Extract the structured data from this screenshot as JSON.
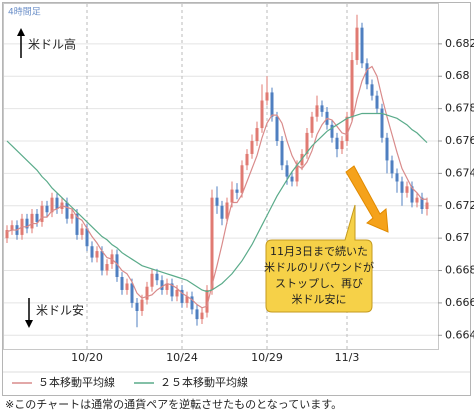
{
  "chart_data": {
    "type": "candlestick",
    "timeframe_label": "4時間足",
    "categories": [
      null,
      null,
      null,
      null,
      null,
      null,
      null,
      null,
      null,
      null,
      null,
      null,
      null,
      null,
      null,
      null,
      "10/20",
      null,
      null,
      null,
      null,
      null,
      null,
      null,
      null,
      null,
      null,
      null,
      null,
      null,
      null,
      null,
      null,
      null,
      null,
      "10/24",
      null,
      null,
      null,
      null,
      null,
      null,
      null,
      null,
      null,
      null,
      null,
      null,
      null,
      null,
      null,
      null,
      "10/29",
      null,
      null,
      null,
      null,
      null,
      null,
      null,
      null,
      null,
      null,
      null,
      null,
      null,
      null,
      null,
      "11/3",
      null,
      null,
      null,
      null,
      null,
      null,
      null,
      null,
      null,
      null,
      null,
      null,
      null,
      null,
      null,
      null
    ],
    "open": [
      0.67,
      0.6705,
      0.6708,
      0.6702,
      0.6712,
      0.6706,
      0.6715,
      0.671,
      0.672,
      0.6716,
      0.6725,
      0.6718,
      0.6722,
      0.6712,
      0.6715,
      0.6702,
      0.6706,
      0.6695,
      0.6688,
      0.6692,
      0.668,
      0.6684,
      0.669,
      0.6676,
      0.6668,
      0.6672,
      0.666,
      0.6655,
      0.6662,
      0.667,
      0.6678,
      0.6674,
      0.6668,
      0.6672,
      0.6664,
      0.6668,
      0.666,
      0.6664,
      0.6656,
      0.665,
      0.6654,
      0.6668,
      0.6725,
      0.672,
      0.6712,
      0.6722,
      0.673,
      0.6728,
      0.6745,
      0.6752,
      0.676,
      0.6768,
      0.6785,
      0.679,
      0.6775,
      0.676,
      0.6745,
      0.6738,
      0.6735,
      0.6745,
      0.6752,
      0.6765,
      0.6775,
      0.6782,
      0.6778,
      0.677,
      0.6762,
      0.6755,
      0.676,
      0.6775,
      0.681,
      0.683,
      0.6808,
      0.6795,
      0.6788,
      0.678,
      0.6762,
      0.6748,
      0.674,
      0.6735,
      0.6728,
      0.6732,
      0.6722,
      0.6725,
      0.6718
    ],
    "high": [
      0.6708,
      0.6711,
      0.6711,
      0.6715,
      0.6715,
      0.6718,
      0.6718,
      0.6723,
      0.6723,
      0.6728,
      0.6728,
      0.6725,
      0.6725,
      0.6718,
      0.6718,
      0.6709,
      0.6709,
      0.6698,
      0.6695,
      0.6695,
      0.6687,
      0.6693,
      0.6693,
      0.6679,
      0.6675,
      0.6675,
      0.6663,
      0.6665,
      0.6673,
      0.6681,
      0.6681,
      0.6677,
      0.6675,
      0.6675,
      0.6671,
      0.6671,
      0.6667,
      0.6667,
      0.6659,
      0.6657,
      0.6671,
      0.673,
      0.6732,
      0.6723,
      0.6725,
      0.6735,
      0.6734,
      0.6748,
      0.6755,
      0.6764,
      0.6772,
      0.6795,
      0.68,
      0.6793,
      0.6778,
      0.6763,
      0.6748,
      0.6741,
      0.6748,
      0.6755,
      0.6768,
      0.6778,
      0.6788,
      0.6785,
      0.6781,
      0.6773,
      0.6765,
      0.6763,
      0.6778,
      0.6815,
      0.6838,
      0.6833,
      0.6811,
      0.6798,
      0.6791,
      0.6783,
      0.6765,
      0.6751,
      0.6743,
      0.6738,
      0.6735,
      0.6735,
      0.6728,
      0.6728,
      0.6725
    ],
    "low": [
      0.6697,
      0.6702,
      0.6699,
      0.6699,
      0.6703,
      0.6703,
      0.6707,
      0.6707,
      0.6713,
      0.6713,
      0.6715,
      0.6715,
      0.6709,
      0.6709,
      0.6699,
      0.6699,
      0.6692,
      0.6685,
      0.6685,
      0.6677,
      0.6677,
      0.6681,
      0.6673,
      0.6665,
      0.6665,
      0.6657,
      0.6645,
      0.6652,
      0.6659,
      0.6667,
      0.6671,
      0.6665,
      0.6665,
      0.6661,
      0.6661,
      0.6657,
      0.6657,
      0.6653,
      0.6646,
      0.6647,
      0.6651,
      0.6665,
      0.6715,
      0.6708,
      0.6709,
      0.6719,
      0.6724,
      0.6725,
      0.6742,
      0.6749,
      0.6757,
      0.6765,
      0.6782,
      0.6772,
      0.6757,
      0.6742,
      0.6733,
      0.6732,
      0.6732,
      0.6742,
      0.6749,
      0.6762,
      0.6772,
      0.6775,
      0.6767,
      0.6759,
      0.675,
      0.6752,
      0.6757,
      0.6772,
      0.6807,
      0.6805,
      0.6792,
      0.6785,
      0.6777,
      0.6759,
      0.674,
      0.6737,
      0.6728,
      0.672,
      0.6725,
      0.6719,
      0.6719,
      0.6715,
      0.6714
    ],
    "close": [
      0.6705,
      0.6708,
      0.6702,
      0.6712,
      0.6706,
      0.6715,
      0.671,
      0.672,
      0.6716,
      0.6725,
      0.6718,
      0.6722,
      0.6712,
      0.6715,
      0.6702,
      0.6706,
      0.6695,
      0.6688,
      0.6692,
      0.668,
      0.6684,
      0.669,
      0.6676,
      0.6668,
      0.6672,
      0.666,
      0.6655,
      0.6662,
      0.667,
      0.6678,
      0.6674,
      0.6668,
      0.6672,
      0.6664,
      0.6668,
      0.666,
      0.6664,
      0.6656,
      0.665,
      0.6654,
      0.6668,
      0.6725,
      0.672,
      0.6712,
      0.6722,
      0.673,
      0.6728,
      0.6745,
      0.6752,
      0.676,
      0.6768,
      0.6785,
      0.679,
      0.6775,
      0.676,
      0.6745,
      0.6738,
      0.6735,
      0.6745,
      0.6752,
      0.6765,
      0.6775,
      0.6782,
      0.6778,
      0.677,
      0.6762,
      0.6755,
      0.676,
      0.6775,
      0.681,
      0.683,
      0.6808,
      0.6795,
      0.6788,
      0.678,
      0.6762,
      0.6748,
      0.674,
      0.6735,
      0.6728,
      0.6732,
      0.6722,
      0.6725,
      0.6718,
      0.6722
    ],
    "up_color": "#e07a72",
    "down_color": "#4f7fc0",
    "series": [
      {
        "name": "５本移動平均線",
        "color": "#d98b8b",
        "values": [
          0.6704,
          0.6705,
          0.6705,
          0.6707,
          0.6707,
          0.6709,
          0.6709,
          0.6713,
          0.6713,
          0.6717,
          0.6718,
          0.672,
          0.6719,
          0.6718,
          0.6713,
          0.6711,
          0.6706,
          0.6701,
          0.6697,
          0.6692,
          0.6688,
          0.6687,
          0.6684,
          0.668,
          0.6678,
          0.6673,
          0.6666,
          0.6663,
          0.6664,
          0.6665,
          0.6668,
          0.667,
          0.6672,
          0.6671,
          0.6669,
          0.6666,
          0.6664,
          0.6662,
          0.6659,
          0.6657,
          0.6658,
          0.6671,
          0.6683,
          0.6696,
          0.671,
          0.6722,
          0.6722,
          0.6727,
          0.6735,
          0.6743,
          0.6751,
          0.6762,
          0.6771,
          0.6776,
          0.6776,
          0.6771,
          0.676,
          0.6751,
          0.6745,
          0.6743,
          0.6747,
          0.6754,
          0.6764,
          0.677,
          0.6774,
          0.6773,
          0.6769,
          0.6765,
          0.6764,
          0.6772,
          0.6786,
          0.6797,
          0.6804,
          0.6806,
          0.68,
          0.6787,
          0.6775,
          0.6764,
          0.6753,
          0.6743,
          0.6737,
          0.6731,
          0.6728,
          0.6724,
          0.6724
        ]
      },
      {
        "name": "２５本移動平均線",
        "color": "#5aab8a",
        "values": [
          0.676,
          0.6757,
          0.6754,
          0.6751,
          0.6748,
          0.6745,
          0.6742,
          0.6738,
          0.6735,
          0.6731,
          0.6728,
          0.6725,
          0.6722,
          0.6719,
          0.6716,
          0.6713,
          0.671,
          0.6707,
          0.6704,
          0.6701,
          0.6699,
          0.6696,
          0.6694,
          0.6691,
          0.6689,
          0.6687,
          0.6685,
          0.6683,
          0.6682,
          0.6681,
          0.668,
          0.6679,
          0.6678,
          0.6677,
          0.6676,
          0.6675,
          0.6674,
          0.6672,
          0.667,
          0.6668,
          0.6667,
          0.6668,
          0.667,
          0.6672,
          0.6675,
          0.6678,
          0.6682,
          0.6686,
          0.6691,
          0.6696,
          0.6702,
          0.6708,
          0.6714,
          0.672,
          0.6726,
          0.6731,
          0.6736,
          0.6741,
          0.6745,
          0.6749,
          0.6753,
          0.6757,
          0.676,
          0.6763,
          0.6766,
          0.6768,
          0.677,
          0.6772,
          0.6774,
          0.6775,
          0.6776,
          0.6777,
          0.6777,
          0.6777,
          0.6777,
          0.6777,
          0.6776,
          0.6775,
          0.6774,
          0.6772,
          0.677,
          0.6767,
          0.6765,
          0.6762,
          0.6759
        ]
      }
    ],
    "ylim": [
      0.6634,
      0.6844
    ],
    "yticks": [
      0.664,
      0.666,
      0.668,
      0.67,
      0.672,
      0.674,
      0.676,
      0.678,
      0.68,
      0.682
    ],
    "annotations": {
      "top_label": "米ドル高",
      "bottom_label": "米ドル安",
      "callout": [
        "11月3日まで続いた",
        "米ドルのリバウンドが",
        "ストップし、再び",
        "米ドル安に"
      ]
    }
  },
  "footnote": "※このチャートは通常の通貨ペアを逆転させたものとなっています。"
}
